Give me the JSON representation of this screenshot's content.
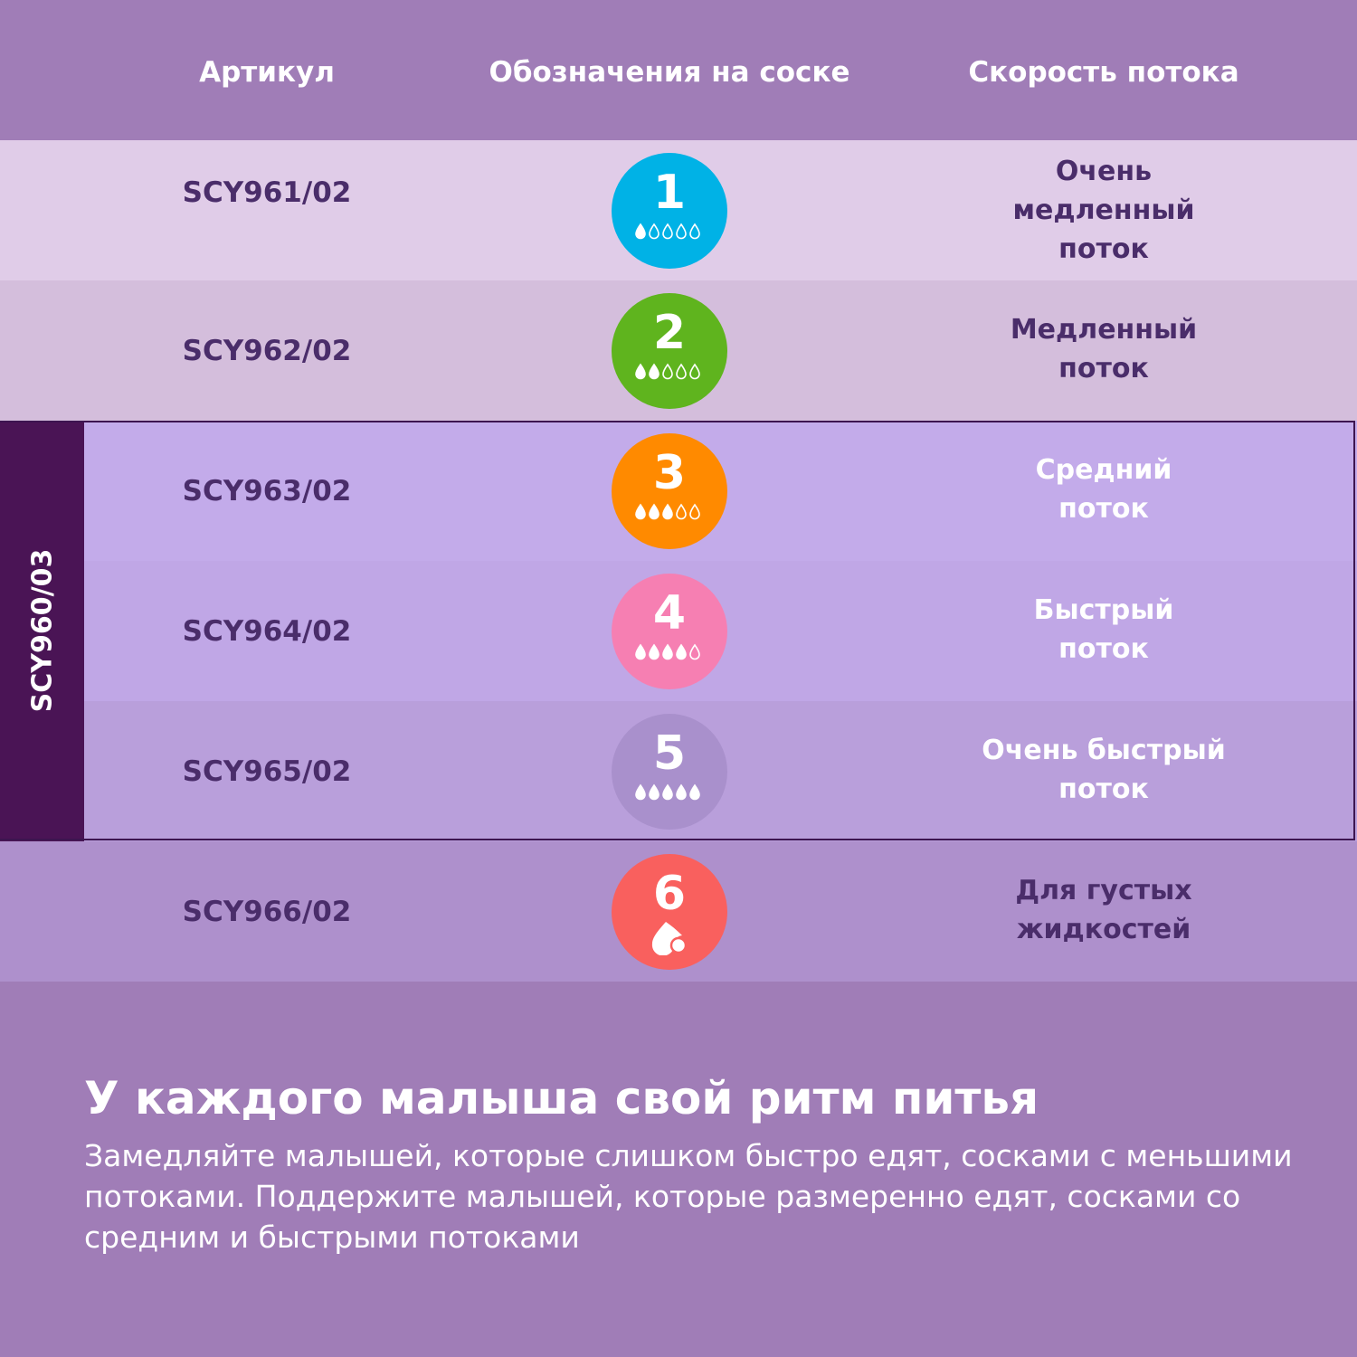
{
  "header": {
    "article": "Артикул",
    "marking": "Обозначения на соске",
    "speed": "Скорость потока"
  },
  "group_label": "SCY960/03",
  "rows": [
    {
      "article": "SCY961/02",
      "number": "1",
      "drops_filled": 1,
      "drops_total": 5,
      "circle_color": "#00b2e6",
      "row_color": "#e0cce8",
      "speed_lines": [
        "Очень",
        "медленный",
        "поток"
      ],
      "speed_color": "#4a2d6a"
    },
    {
      "article": "SCY962/02",
      "number": "2",
      "drops_filled": 2,
      "drops_total": 5,
      "circle_color": "#5fb41e",
      "row_color": "#d4bedc",
      "speed_lines": [
        "Медленный",
        "поток"
      ],
      "speed_color": "#4a2d6a"
    },
    {
      "article": "SCY963/02",
      "number": "3",
      "drops_filled": 3,
      "drops_total": 5,
      "circle_color": "#ff8a00",
      "row_color": "#c3abea",
      "speed_lines": [
        "Средний",
        "поток"
      ],
      "speed_color": "#ffffff"
    },
    {
      "article": "SCY964/02",
      "number": "4",
      "drops_filled": 4,
      "drops_total": 5,
      "circle_color": "#f67fb2",
      "row_color": "#c0a7e6",
      "speed_lines": [
        "Быстрый",
        "поток"
      ],
      "speed_color": "#ffffff"
    },
    {
      "article": "SCY965/02",
      "number": "5",
      "drops_filled": 5,
      "drops_total": 5,
      "circle_color": "#a990cc",
      "row_color": "#b99fdb",
      "speed_lines": [
        "Очень быстрый",
        "поток"
      ],
      "speed_color": "#ffffff"
    },
    {
      "article": "SCY966/02",
      "number": "6",
      "icon": "thick-liquid-drop-icon",
      "circle_color": "#f9605e",
      "row_color": "#ae90cc",
      "speed_lines": [
        "Для густых",
        "жидкостей"
      ],
      "speed_color": "#4a2d6a"
    }
  ],
  "footer": {
    "title": "У каждого малыша свой ритм питья",
    "description": "Замедляйте малышей, которые слишком  быстро едят, сосками с меньшими потоками. Поддержите малышей, которые размеренно едят, сосками со средним и быстрыми потоками"
  },
  "colors": {
    "background": "#a07db7",
    "group_bar": "#4a1455",
    "text_dark": "#4a2d6a"
  }
}
